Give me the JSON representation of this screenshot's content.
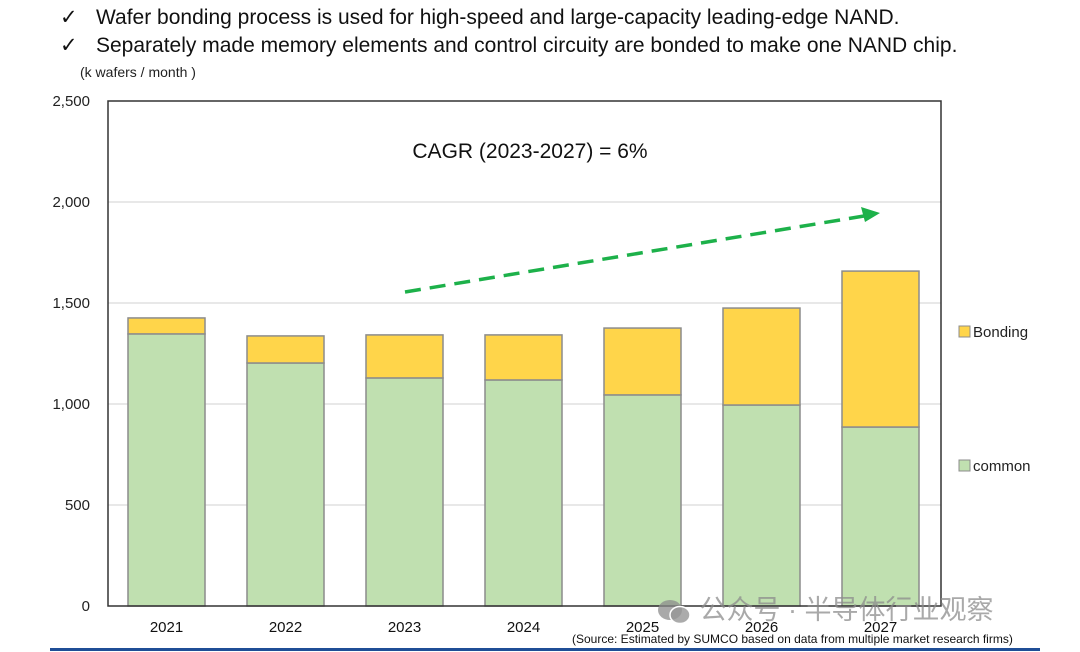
{
  "bullets": [
    {
      "icon": "check-icon",
      "glyph": "✓",
      "text": "Wafer bonding process is used for high-speed and large-capacity leading-edge NAND."
    },
    {
      "icon": "check-icon",
      "glyph": "✓",
      "text": "Separately made memory elements and control circuity are bonded to make one NAND chip."
    }
  ],
  "source": "(Source: Estimated by SUMCO based on data from multiple market research firms)",
  "watermark": "公众号 · 半导体行业观察",
  "chart_data": {
    "type": "bar",
    "stacked": true,
    "title": "",
    "annotation": "CAGR (2023-2027) = 6%",
    "ylabel": "(k wafers / month )",
    "xlabel": "",
    "categories": [
      "2021",
      "2022",
      "2023",
      "2024",
      "2025",
      "2026",
      "2027"
    ],
    "series": [
      {
        "name": "common",
        "color": "#c0e0b0",
        "values": [
          1347,
          1203,
          1129,
          1119,
          1045,
          995,
          886
        ]
      },
      {
        "name": "Bonding",
        "color": "#ffd54a",
        "values": [
          79,
          134,
          213,
          223,
          331,
          480,
          772
        ]
      }
    ],
    "ylim": [
      0,
      2500
    ],
    "yticks": [
      0,
      500,
      1000,
      1500,
      2000,
      2500
    ],
    "ytick_labels": [
      "0",
      "500",
      "1,000",
      "1,500",
      "2,000",
      "2,500"
    ],
    "grid": true,
    "legend": {
      "placement": "right",
      "entries": [
        "Bonding",
        "common"
      ]
    },
    "trend_arrow": {
      "style": "dashed",
      "color": "#1db14a",
      "direction": "up-right",
      "from_category": "2023",
      "to_category": "2027"
    }
  }
}
